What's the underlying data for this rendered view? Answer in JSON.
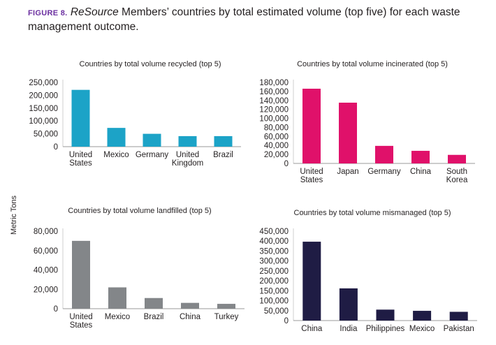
{
  "figure": {
    "label": "FIGURE 8.",
    "title_italic": "ReSource",
    "title_rest": " Members’ countries by total estimated volume (top five) for each waste management outcome.",
    "ylabel": "Metric Tons"
  },
  "chart_data": [
    {
      "type": "bar",
      "title": "Countries by total volume recycled (top 5)",
      "categories": [
        [
          "United",
          "States"
        ],
        [
          "Mexico"
        ],
        [
          "Germany"
        ],
        [
          "United",
          "Kingdom"
        ],
        [
          "Brazil"
        ]
      ],
      "values": [
        221000,
        73000,
        50000,
        41000,
        41000
      ],
      "ylim": [
        0,
        250000
      ],
      "ticks": [
        0,
        50000,
        100000,
        150000,
        200000,
        250000
      ],
      "tick_labels": [
        "0",
        "50,000",
        "100,000",
        "150,000",
        "200,000",
        "250,000"
      ],
      "color": "#1ca3c7",
      "ylabel": "Metric Tons",
      "grid": false
    },
    {
      "type": "bar",
      "title": "Countries by total volume incinerated (top 5)",
      "categories": [
        [
          "United",
          "States"
        ],
        [
          "Japan"
        ],
        [
          "Germany"
        ],
        [
          "China"
        ],
        [
          "South",
          "Korea"
        ]
      ],
      "values": [
        166000,
        135000,
        39000,
        28000,
        19000
      ],
      "ylim": [
        0,
        180000
      ],
      "ticks": [
        0,
        20000,
        40000,
        60000,
        80000,
        100000,
        120000,
        140000,
        160000,
        180000
      ],
      "tick_labels": [
        "0",
        "20,000",
        "40,000",
        "60,000",
        "80,000",
        "100,000",
        "120,000",
        "140,000",
        "160,000",
        "180,000"
      ],
      "color": "#e0116a",
      "ylabel": "Metric Tons",
      "grid": false
    },
    {
      "type": "bar",
      "title": "Countries by total volume landfilled (top 5)",
      "categories": [
        [
          "United",
          "States"
        ],
        [
          "Mexico"
        ],
        [
          "Brazil"
        ],
        [
          "China"
        ],
        [
          "Turkey"
        ]
      ],
      "values": [
        70000,
        22000,
        11000,
        6000,
        5000
      ],
      "ylim": [
        0,
        80000
      ],
      "ticks": [
        0,
        20000,
        40000,
        60000,
        80000
      ],
      "tick_labels": [
        "0",
        "20,000",
        "40,000",
        "60,000",
        "80,000"
      ],
      "color": "#838689",
      "ylabel": "Metric Tons",
      "grid": false
    },
    {
      "type": "bar",
      "title": "Countries by total volume mismanaged (top 5)",
      "categories": [
        [
          "China"
        ],
        [
          "India"
        ],
        [
          "Philippines"
        ],
        [
          "Mexico"
        ],
        [
          "Pakistan"
        ]
      ],
      "values": [
        397000,
        162000,
        55000,
        49000,
        44000
      ],
      "ylim": [
        0,
        450000
      ],
      "ticks": [
        0,
        50000,
        100000,
        150000,
        200000,
        250000,
        300000,
        350000,
        400000,
        450000
      ],
      "tick_labels": [
        "0",
        "50,000",
        "100,000",
        "150,000",
        "200,000",
        "250,000",
        "300,000",
        "350,000",
        "400,000",
        "450,000"
      ],
      "color": "#1f1c44",
      "ylabel": "Metric Tons",
      "grid": false
    }
  ]
}
